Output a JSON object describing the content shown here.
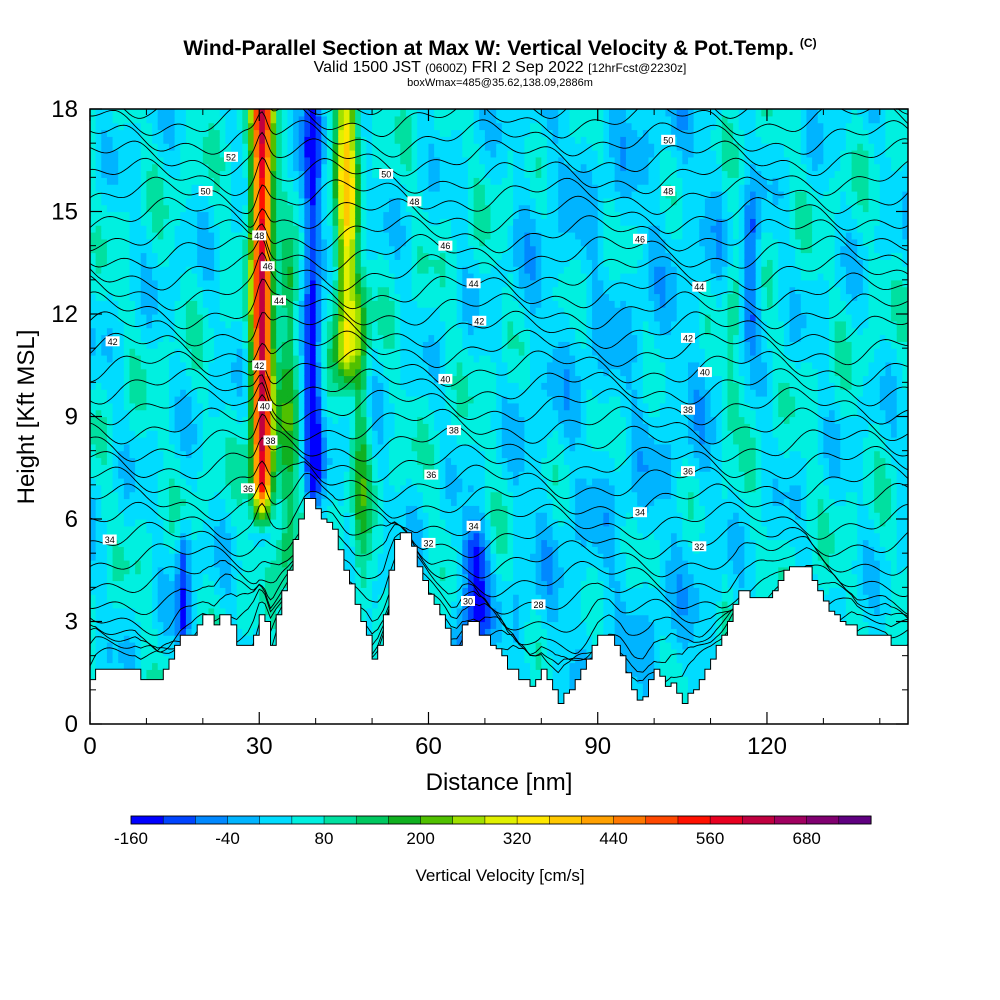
{
  "header": {
    "title": "Wind-Parallel Section at Max W: Vertical Velocity & Pot.Temp.",
    "copyright": "(C)",
    "valid_prefix": "Valid 1500 JST",
    "valid_utc": "(0600Z)",
    "valid_date": "FRI 2 Sep 2022",
    "forecast": "[12hrFcst@2230z]",
    "box_info": "boxWmax=485@35.62,138.09,2886m"
  },
  "chart_data": {
    "type": "heatmap",
    "xlabel": "Distance [nm]",
    "ylabel": "Height [Kft MSL]",
    "xlim": [
      0,
      145
    ],
    "ylim": [
      0,
      18
    ],
    "x_ticks": [
      "0",
      "30",
      "60",
      "90",
      "120"
    ],
    "y_ticks": [
      "0",
      "3",
      "6",
      "9",
      "12",
      "15",
      "18"
    ],
    "colorbar": {
      "label": "Vertical Velocity [cm/s]",
      "min": -160,
      "max": 740,
      "step": 40,
      "tick_labels": [
        "-160",
        "-40",
        "80",
        "200",
        "320",
        "440",
        "560",
        "680"
      ],
      "colors": [
        "#0000ff",
        "#0044ff",
        "#0088ff",
        "#00b4ff",
        "#00dcff",
        "#00f0e0",
        "#00e0a0",
        "#00c860",
        "#10b020",
        "#50c000",
        "#a0e000",
        "#e0f000",
        "#ffe800",
        "#ffc800",
        "#ffa000",
        "#ff7800",
        "#ff4800",
        "#ff1000",
        "#e80020",
        "#c00040",
        "#a00060",
        "#800070",
        "#600080"
      ]
    },
    "contour_labels": [
      {
        "x": 25,
        "y": 16.6,
        "text": "52"
      },
      {
        "x": 20.5,
        "y": 15.6,
        "text": "50"
      },
      {
        "x": 52.5,
        "y": 16.1,
        "text": "50"
      },
      {
        "x": 102.5,
        "y": 17.1,
        "text": "50"
      },
      {
        "x": 57.5,
        "y": 15.3,
        "text": "48"
      },
      {
        "x": 102.5,
        "y": 15.6,
        "text": "48"
      },
      {
        "x": 30,
        "y": 14.3,
        "text": "48"
      },
      {
        "x": 31.5,
        "y": 13.4,
        "text": "46"
      },
      {
        "x": 63,
        "y": 14.0,
        "text": "46"
      },
      {
        "x": 97.5,
        "y": 14.2,
        "text": "46"
      },
      {
        "x": 33.5,
        "y": 12.4,
        "text": "44"
      },
      {
        "x": 68,
        "y": 12.9,
        "text": "44"
      },
      {
        "x": 108,
        "y": 12.8,
        "text": "44"
      },
      {
        "x": 4,
        "y": 11.2,
        "text": "42"
      },
      {
        "x": 30,
        "y": 10.5,
        "text": "42"
      },
      {
        "x": 69,
        "y": 11.8,
        "text": "42"
      },
      {
        "x": 106,
        "y": 11.3,
        "text": "42"
      },
      {
        "x": 31,
        "y": 9.3,
        "text": "40"
      },
      {
        "x": 63,
        "y": 10.1,
        "text": "40"
      },
      {
        "x": 109,
        "y": 10.3,
        "text": "40"
      },
      {
        "x": 32,
        "y": 8.3,
        "text": "38"
      },
      {
        "x": 64.5,
        "y": 8.6,
        "text": "38"
      },
      {
        "x": 106,
        "y": 9.2,
        "text": "38"
      },
      {
        "x": 28,
        "y": 6.9,
        "text": "36"
      },
      {
        "x": 60.5,
        "y": 7.3,
        "text": "36"
      },
      {
        "x": 106,
        "y": 7.4,
        "text": "36"
      },
      {
        "x": 3.5,
        "y": 5.4,
        "text": "34"
      },
      {
        "x": 68,
        "y": 5.8,
        "text": "34"
      },
      {
        "x": 97.5,
        "y": 6.2,
        "text": "34"
      },
      {
        "x": 60,
        "y": 5.3,
        "text": "32"
      },
      {
        "x": 108,
        "y": 5.2,
        "text": "32"
      },
      {
        "x": 67,
        "y": 3.6,
        "text": "30"
      },
      {
        "x": 79.5,
        "y": 3.5,
        "text": "28"
      }
    ],
    "terrain": [
      [
        0,
        1.3
      ],
      [
        1,
        1.6
      ],
      [
        4,
        1.6
      ],
      [
        8,
        1.6
      ],
      [
        9,
        1.3
      ],
      [
        12,
        1.3
      ],
      [
        13,
        1.6
      ],
      [
        14,
        1.9
      ],
      [
        15,
        2.3
      ],
      [
        16,
        2.6
      ],
      [
        18,
        2.6
      ],
      [
        19,
        2.9
      ],
      [
        20,
        3.2
      ],
      [
        21,
        3.2
      ],
      [
        22,
        2.9
      ],
      [
        23,
        3.2
      ],
      [
        24,
        3.2
      ],
      [
        25,
        2.9
      ],
      [
        26,
        2.3
      ],
      [
        28,
        2.3
      ],
      [
        29,
        2.6
      ],
      [
        30,
        3.2
      ],
      [
        31,
        3.0
      ],
      [
        32,
        2.3
      ],
      [
        33,
        3.2
      ],
      [
        34,
        3.9
      ],
      [
        35,
        4.5
      ],
      [
        36,
        5.4
      ],
      [
        37,
        6.0
      ],
      [
        38,
        6.6
      ],
      [
        39,
        6.6
      ],
      [
        40,
        6.3
      ],
      [
        41,
        6.0
      ],
      [
        42,
        5.9
      ],
      [
        43,
        5.7
      ],
      [
        44,
        5.1
      ],
      [
        45,
        4.5
      ],
      [
        46,
        4.1
      ],
      [
        47,
        3.5
      ],
      [
        48,
        3.0
      ],
      [
        49,
        2.6
      ],
      [
        50,
        1.9
      ],
      [
        51,
        2.3
      ],
      [
        52,
        3.2
      ],
      [
        53,
        4.5
      ],
      [
        54,
        5.4
      ],
      [
        55,
        5.6
      ],
      [
        56,
        5.6
      ],
      [
        57,
        5.2
      ],
      [
        58,
        4.6
      ],
      [
        59,
        4.2
      ],
      [
        60,
        3.8
      ],
      [
        61,
        3.5
      ],
      [
        62,
        3.2
      ],
      [
        63,
        2.8
      ],
      [
        64,
        2.3
      ],
      [
        65,
        2.3
      ],
      [
        66,
        2.9
      ],
      [
        67,
        3.0
      ],
      [
        68,
        3.0
      ],
      [
        69,
        2.6
      ],
      [
        70,
        2.6
      ],
      [
        71,
        2.3
      ],
      [
        72,
        2.2
      ],
      [
        73,
        2.0
      ],
      [
        74,
        1.6
      ],
      [
        75,
        1.6
      ],
      [
        76,
        1.3
      ],
      [
        77,
        1.3
      ],
      [
        78,
        1.1
      ],
      [
        79,
        1.3
      ],
      [
        80,
        1.6
      ],
      [
        81,
        1.3
      ],
      [
        82,
        1.0
      ],
      [
        83,
        0.6
      ],
      [
        84,
        0.9
      ],
      [
        85,
        1.0
      ],
      [
        86,
        1.3
      ],
      [
        87,
        1.6
      ],
      [
        88,
        1.9
      ],
      [
        89,
        2.3
      ],
      [
        90,
        2.6
      ],
      [
        91,
        2.6
      ],
      [
        92,
        2.6
      ],
      [
        93,
        2.3
      ],
      [
        94,
        2.0
      ],
      [
        95,
        1.5
      ],
      [
        96,
        1.0
      ],
      [
        97,
        0.7
      ],
      [
        98,
        0.8
      ],
      [
        99,
        1.3
      ],
      [
        100,
        1.6
      ],
      [
        101,
        1.4
      ],
      [
        102,
        1.1
      ],
      [
        103,
        1.2
      ],
      [
        104,
        0.9
      ],
      [
        105,
        0.6
      ],
      [
        106,
        0.9
      ],
      [
        107,
        1.0
      ],
      [
        108,
        1.3
      ],
      [
        109,
        1.6
      ],
      [
        110,
        1.9
      ],
      [
        111,
        2.3
      ],
      [
        112,
        2.6
      ],
      [
        113,
        3.0
      ],
      [
        114,
        3.5
      ],
      [
        115,
        3.9
      ],
      [
        116,
        3.9
      ],
      [
        117,
        3.7
      ],
      [
        118,
        3.7
      ],
      [
        119,
        3.7
      ],
      [
        120,
        3.7
      ],
      [
        121,
        3.9
      ],
      [
        122,
        4.2
      ],
      [
        123,
        4.5
      ],
      [
        124,
        4.6
      ],
      [
        127,
        4.6
      ],
      [
        128,
        4.2
      ],
      [
        129,
        3.9
      ],
      [
        130,
        3.6
      ],
      [
        131,
        3.3
      ],
      [
        132,
        3.2
      ],
      [
        133,
        3.0
      ],
      [
        134,
        2.9
      ],
      [
        135,
        2.9
      ],
      [
        136,
        2.6
      ],
      [
        137,
        2.6
      ],
      [
        138,
        2.6
      ],
      [
        139,
        2.6
      ],
      [
        140,
        2.6
      ],
      [
        141,
        2.6
      ],
      [
        142,
        2.3
      ],
      [
        143,
        2.3
      ],
      [
        144,
        2.3
      ],
      [
        145,
        2.3
      ]
    ],
    "velocity_features": [
      {
        "x": 30.5,
        "y_bottom": 7.0,
        "y_top": 18,
        "peak": 600,
        "width": 1.8
      },
      {
        "x": 45.5,
        "y_bottom": 11.0,
        "y_top": 18,
        "peak": 330,
        "width": 2.0
      },
      {
        "x": 35.0,
        "y_bottom": 5.0,
        "y_top": 13.0,
        "peak": 170,
        "width": 1.8
      },
      {
        "x": 39.5,
        "y_bottom": 7.0,
        "y_top": 18,
        "peak": -130,
        "width": 1.6
      },
      {
        "x": 48.0,
        "y_bottom": 4.0,
        "y_top": 12.0,
        "peak": 150,
        "width": 1.5
      },
      {
        "x": 68.0,
        "y_bottom": 2.0,
        "y_top": 5.0,
        "peak": -140,
        "width": 2.5
      },
      {
        "x": 16.5,
        "y_bottom": 2.8,
        "y_top": 5.0,
        "peak": -110,
        "width": 1.2
      },
      {
        "x": 117.0,
        "y_bottom": 12.0,
        "y_top": 14.5,
        "peak": -100,
        "width": 1.5
      },
      {
        "x": 114.0,
        "y_bottom": 9.5,
        "y_top": 12.5,
        "peak": 110,
        "width": 1.5
      }
    ]
  }
}
